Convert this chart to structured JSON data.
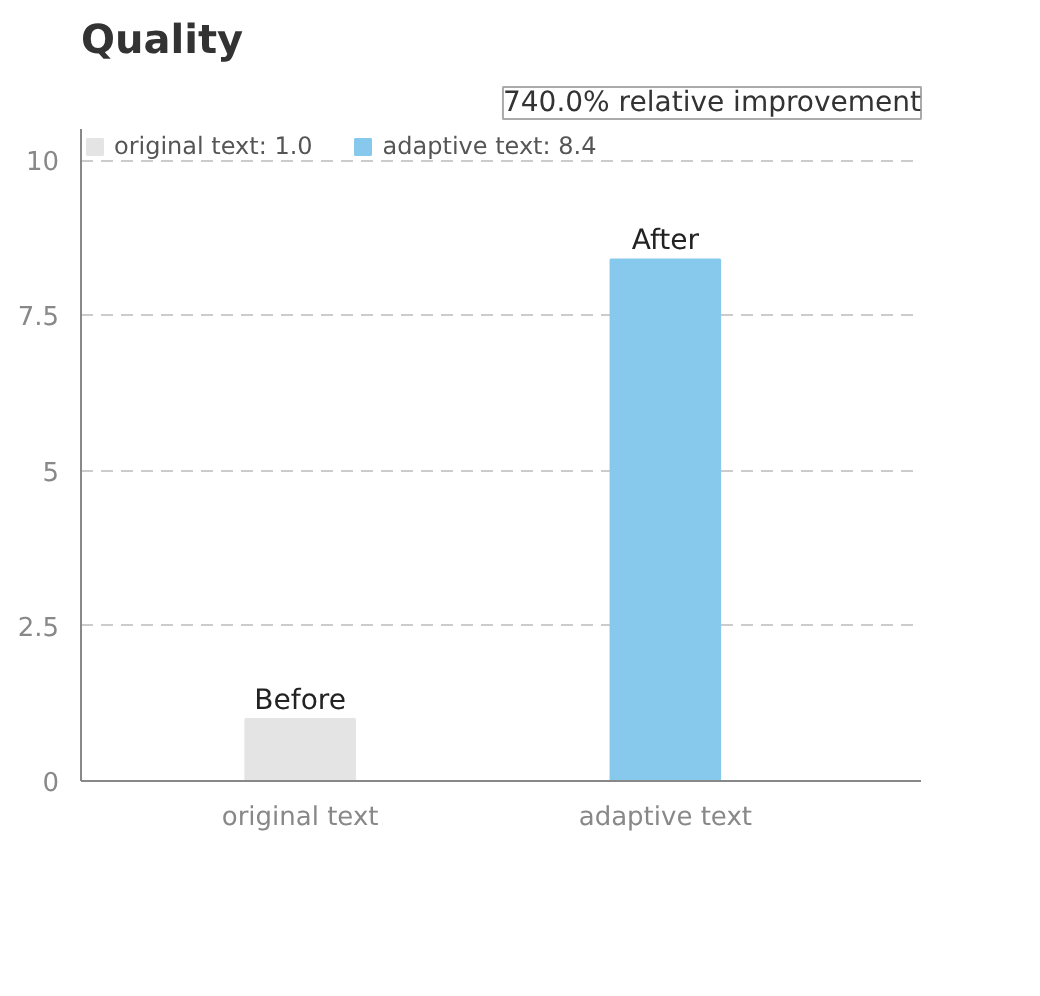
{
  "chart_data": {
    "type": "bar",
    "title": "Quality",
    "categories": [
      "original text",
      "adaptive text"
    ],
    "series": [
      {
        "name": "original text: 1.0",
        "color": "#e4e4e4",
        "values": [
          1.0,
          null
        ]
      },
      {
        "name": "adaptive text: 8.4",
        "color": "#86c9ed",
        "values": [
          null,
          8.4
        ]
      }
    ],
    "ylim": [
      0,
      10.5
    ],
    "yticks": [
      0,
      2.5,
      5,
      7.5,
      10
    ],
    "grid": "y",
    "legend": "top left",
    "annotations": [
      "740.0% relative improvement",
      {
        "text": "Before",
        "x": "original text",
        "y": 1.0
      },
      {
        "text": "After",
        "x": "adaptive text",
        "y": 8.4
      }
    ]
  }
}
